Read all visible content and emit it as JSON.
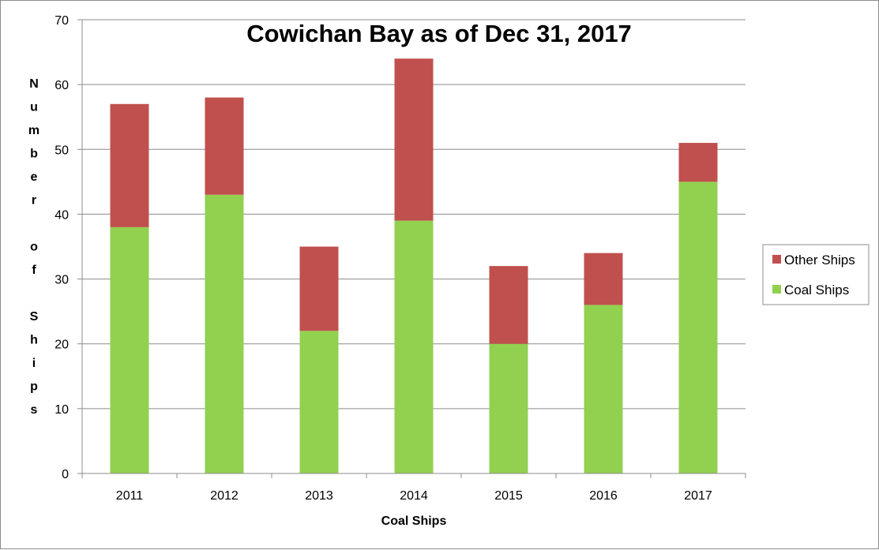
{
  "chart_data": {
    "type": "bar",
    "stacked": true,
    "title": "Cowichan Bay as of Dec 31, 2017",
    "xlabel": "Coal Ships",
    "ylabel": "Number of Ships",
    "categories": [
      "2011",
      "2012",
      "2013",
      "2014",
      "2015",
      "2016",
      "2017"
    ],
    "series": [
      {
        "name": "Coal Ships",
        "values": [
          38,
          43,
          22,
          39,
          20,
          26,
          45
        ],
        "color": "#92d050"
      },
      {
        "name": "Other Ships",
        "values": [
          19,
          15,
          13,
          25,
          12,
          8,
          6
        ],
        "color": "#c0504d"
      }
    ],
    "ylim": [
      0,
      70
    ],
    "yticks": [
      0,
      10,
      20,
      30,
      40,
      50,
      60,
      70
    ],
    "grid": true,
    "legend_position": "right",
    "legend_order": [
      "Other Ships",
      "Coal Ships"
    ]
  }
}
